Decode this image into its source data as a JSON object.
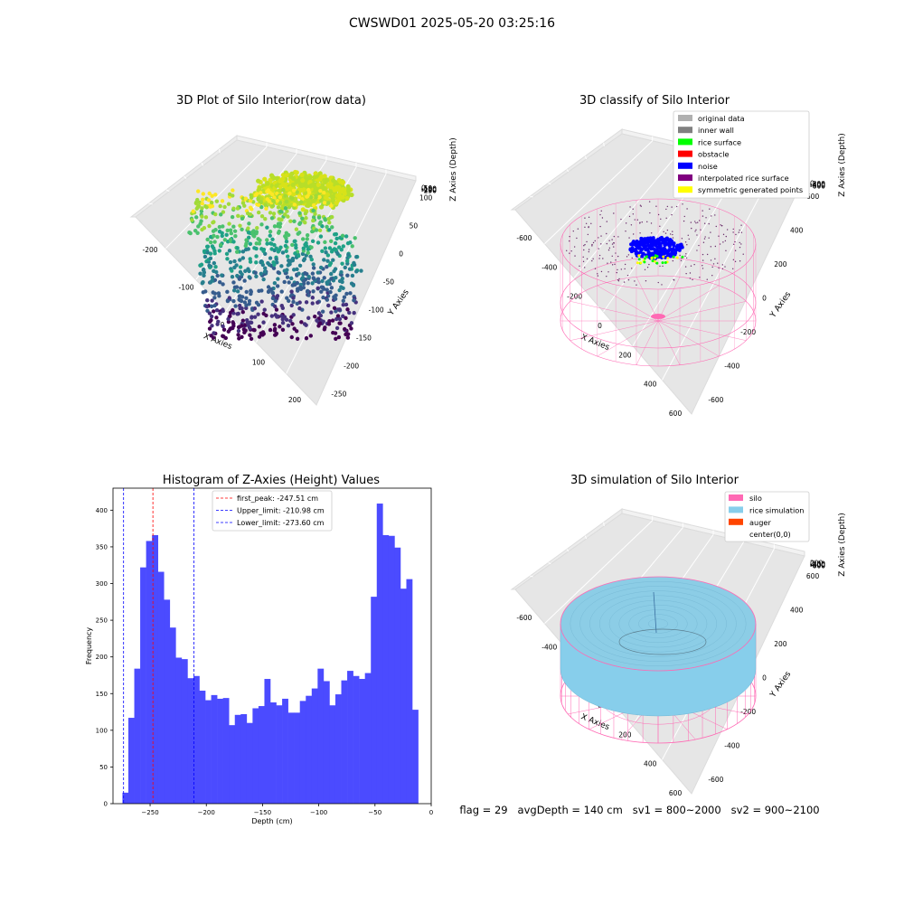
{
  "suptitle": "CWSWD01 2025-05-20 03:25:16",
  "footer": {
    "flag": "flag = 29",
    "avg": "avgDepth = 140 cm",
    "sv1": "sv1 = 800~2000",
    "sv2": "sv2 = 900~2100"
  },
  "chart_data": [
    {
      "type": "scatter",
      "title": "3D Plot of Silo Interior(row data)",
      "xlabel": "X Axies",
      "ylabel": "Y Axies",
      "zlabel": "Z Axies (Depth)",
      "xticks": [
        "-200",
        "-100",
        "0",
        "100",
        "200"
      ],
      "yticks": [
        "100",
        "50",
        "0",
        "-50",
        "-100",
        "-150",
        "-200",
        "-250"
      ],
      "zticks": [
        "0",
        "-50",
        "-100",
        "-150",
        "-200",
        "-250"
      ],
      "colormap": "viridis"
    },
    {
      "type": "scatter",
      "title": "3D classify of Silo Interior",
      "xlabel": "X Axies",
      "ylabel": "Y Axies",
      "zlabel": "Z Axies (Depth)",
      "xticks": [
        "-600",
        "-400",
        "-200",
        "0",
        "200",
        "400",
        "600"
      ],
      "yticks": [
        "600",
        "400",
        "200",
        "0",
        "-200",
        "-400",
        "-600"
      ],
      "zticks": [
        "0",
        "-200",
        "-400",
        "-600",
        "-800"
      ],
      "legend_position": "top-right",
      "legend": [
        {
          "label": "original data",
          "color": "#b0b0b0"
        },
        {
          "label": "inner wall",
          "color": "#808080"
        },
        {
          "label": "rice surface",
          "color": "#00ff00"
        },
        {
          "label": "obstacle",
          "color": "#ff0000"
        },
        {
          "label": "noise",
          "color": "#0000ff"
        },
        {
          "label": "interpolated rice surface",
          "color": "#800080"
        },
        {
          "label": "symmetric generated points",
          "color": "#ffff00"
        }
      ]
    },
    {
      "type": "bar",
      "title": "Histogram of Z-Axies (Height) Values",
      "xlabel": "Depth (cm)",
      "ylabel": "Frequency",
      "xlim": [
        -283,
        0
      ],
      "ylim": [
        0,
        430
      ],
      "xticks": [
        -250,
        -200,
        -150,
        -100,
        -50,
        0
      ],
      "yticks": [
        0,
        50,
        100,
        150,
        200,
        250,
        300,
        350,
        400
      ],
      "bar_color": "#4b4bff",
      "bin_start": -274.6,
      "bin_width": 5.26,
      "values": [
        15,
        117,
        184,
        322,
        358,
        366,
        316,
        278,
        240,
        199,
        197,
        171,
        174,
        154,
        141,
        148,
        143,
        144,
        107,
        121,
        122,
        110,
        130,
        133,
        170,
        138,
        134,
        143,
        124,
        124,
        140,
        147,
        157,
        184,
        167,
        134,
        149,
        168,
        181,
        174,
        170,
        178,
        282,
        409,
        366,
        365,
        349,
        293,
        306,
        128
      ],
      "vlines": [
        {
          "label": "first_peak: -247.51 cm",
          "x": -247.51,
          "color": "#ff0000"
        },
        {
          "label": "Upper_limit: -210.98 cm",
          "x": -210.98,
          "color": "#0000ff"
        },
        {
          "label": "Lower_limit: -273.60 cm",
          "x": -273.6,
          "color": "#0000ff"
        }
      ],
      "legend_position": "top-center"
    },
    {
      "type": "surface",
      "title": "3D simulation of Silo Interior",
      "xlabel": "X Axies",
      "ylabel": "Y Axies",
      "zlabel": "Z Axies (Depth)",
      "xticks": [
        "-600",
        "-400",
        "-200",
        "0",
        "200",
        "400",
        "600"
      ],
      "yticks": [
        "600",
        "400",
        "200",
        "0",
        "-200",
        "-400",
        "-600"
      ],
      "zticks": [
        "200",
        "0",
        "-200",
        "-400",
        "-600",
        "-800"
      ],
      "legend_position": "top-right",
      "legend": [
        {
          "label": "silo",
          "color": "#ff69b4"
        },
        {
          "label": "rice simulation",
          "color": "#87ceeb"
        },
        {
          "label": "auger",
          "color": "#ff4500"
        },
        {
          "label": "center(0,0)",
          "color": ""
        }
      ]
    }
  ]
}
